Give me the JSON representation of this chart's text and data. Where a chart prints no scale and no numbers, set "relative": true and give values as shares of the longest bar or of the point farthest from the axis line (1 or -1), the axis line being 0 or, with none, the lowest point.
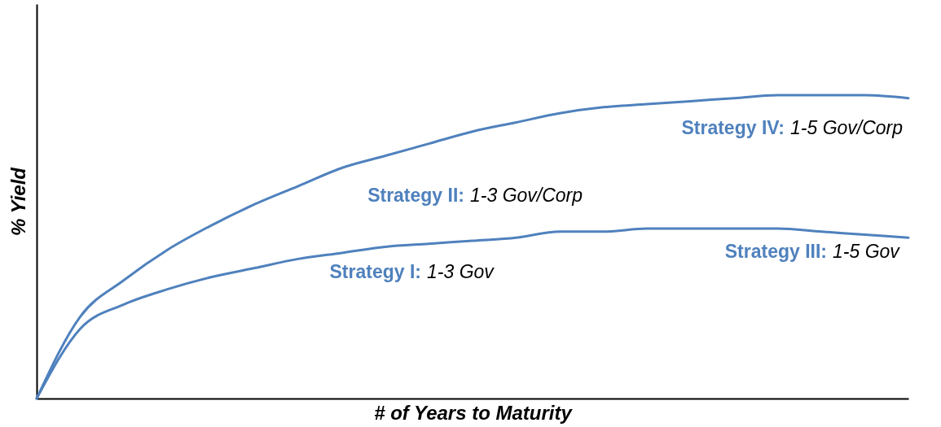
{
  "chart_data": {
    "type": "line",
    "relative": true,
    "xlabel": "# of Years to Maturity",
    "ylabel": "% Yield",
    "categories": [
      null,
      null,
      null,
      null,
      null,
      null,
      null,
      null,
      null,
      null,
      null,
      null,
      null,
      null,
      null,
      null,
      null,
      null,
      null,
      null,
      null
    ],
    "series": [
      {
        "color": "#4f81bd",
        "values": [
          0,
          0.27,
          0.39,
          0.49,
          0.57,
          0.64,
          0.7,
          0.76,
          0.8,
          0.84,
          0.88,
          0.91,
          0.94,
          0.96,
          0.97,
          0.98,
          0.99,
          1,
          1,
          1,
          0.99
        ]
      },
      {
        "color": "#4f81bd",
        "values": [
          0,
          0.23,
          0.31,
          0.36,
          0.4,
          0.43,
          0.46,
          0.48,
          0.5,
          0.51,
          0.52,
          0.53,
          0.55,
          0.55,
          0.56,
          0.56,
          0.56,
          0.56,
          0.55,
          0.54,
          0.53
        ]
      }
    ],
    "annotations": [
      "Strategy IV: 1-5 Gov/Corp",
      "Strategy II: 1-3 Gov/Corp",
      "Strategy III: 1-5 Gov",
      "Strategy I: 1-3 Gov"
    ],
    "grid": false,
    "marker": "none",
    "line_style": "solid"
  }
}
